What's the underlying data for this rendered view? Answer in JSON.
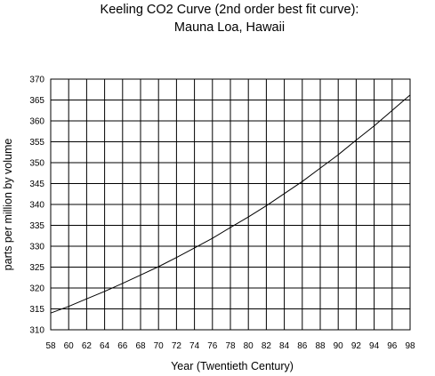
{
  "chart_data": {
    "type": "line",
    "title": "Keeling CO2 Curve (2nd order best fit curve):",
    "subtitle": "Mauna Loa, Hawaii",
    "xlabel": "Year (Twentieth Century)",
    "ylabel": "parts per million by volume",
    "xlim": [
      58,
      98
    ],
    "ylim": [
      310,
      370
    ],
    "xticks": [
      58,
      60,
      62,
      64,
      66,
      68,
      70,
      72,
      74,
      76,
      78,
      80,
      82,
      84,
      86,
      88,
      90,
      92,
      94,
      96,
      98
    ],
    "yticks": [
      310,
      315,
      320,
      325,
      330,
      335,
      340,
      345,
      350,
      355,
      360,
      365,
      370
    ],
    "grid": true,
    "legend": "none",
    "line_color": "#000000",
    "series": [
      {
        "x": [
          58,
          60,
          62,
          64,
          66,
          68,
          70,
          72,
          74,
          76,
          78,
          80,
          82,
          84,
          86,
          88,
          90,
          92,
          94,
          96,
          98
        ],
        "y": [
          314.0,
          315.6,
          317.4,
          319.2,
          321.1,
          323.1,
          325.1,
          327.3,
          329.6,
          331.9,
          334.5,
          337.0,
          339.7,
          342.6,
          345.5,
          348.7,
          351.9,
          355.4,
          358.8,
          362.5,
          366.2
        ]
      }
    ]
  }
}
